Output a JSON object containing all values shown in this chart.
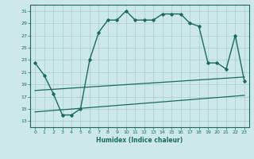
{
  "title": "",
  "xlabel": "Humidex (Indice chaleur)",
  "ylabel": "",
  "background_color": "#cce8e8",
  "grid_color": "#aacccc",
  "line_color": "#1a6b5a",
  "xlim": [
    -0.5,
    23.5
  ],
  "ylim": [
    12,
    32
  ],
  "xticks": [
    0,
    1,
    2,
    3,
    4,
    5,
    6,
    7,
    8,
    9,
    10,
    11,
    12,
    13,
    14,
    15,
    16,
    17,
    18,
    19,
    20,
    21,
    22,
    23
  ],
  "yticks": [
    13,
    15,
    17,
    19,
    21,
    23,
    25,
    27,
    29,
    31
  ],
  "line1_x": [
    0,
    1,
    2,
    3,
    4,
    5,
    6,
    7,
    8,
    9,
    10,
    11,
    12,
    13,
    14,
    15,
    16,
    17,
    18,
    19,
    20,
    21,
    22,
    23
  ],
  "line1_y": [
    22.5,
    20.5,
    17.5,
    14.0,
    14.0,
    15.0,
    23.0,
    27.5,
    29.5,
    29.5,
    31.0,
    29.5,
    29.5,
    29.5,
    30.5,
    30.5,
    30.5,
    29.0,
    28.5,
    22.5,
    22.5,
    21.5,
    27.0,
    19.5
  ],
  "line2_x": [
    0,
    2,
    23
  ],
  "line2_y": [
    18.0,
    18.0,
    20.0
  ],
  "line3_x": [
    0,
    2,
    23
  ],
  "line3_y": [
    14.5,
    14.5,
    17.0
  ],
  "marker_x": [
    0,
    1,
    2,
    3,
    4,
    5,
    6,
    7,
    8,
    9,
    10,
    11,
    12,
    13,
    14,
    15,
    16,
    17,
    18,
    19,
    20,
    21,
    22,
    23
  ],
  "marker_y": [
    22.5,
    20.5,
    17.5,
    14.0,
    14.0,
    15.0,
    23.0,
    27.5,
    29.5,
    29.5,
    31.0,
    29.5,
    29.5,
    29.5,
    30.5,
    30.5,
    30.5,
    29.0,
    28.5,
    22.5,
    22.5,
    21.5,
    27.0,
    19.5
  ]
}
